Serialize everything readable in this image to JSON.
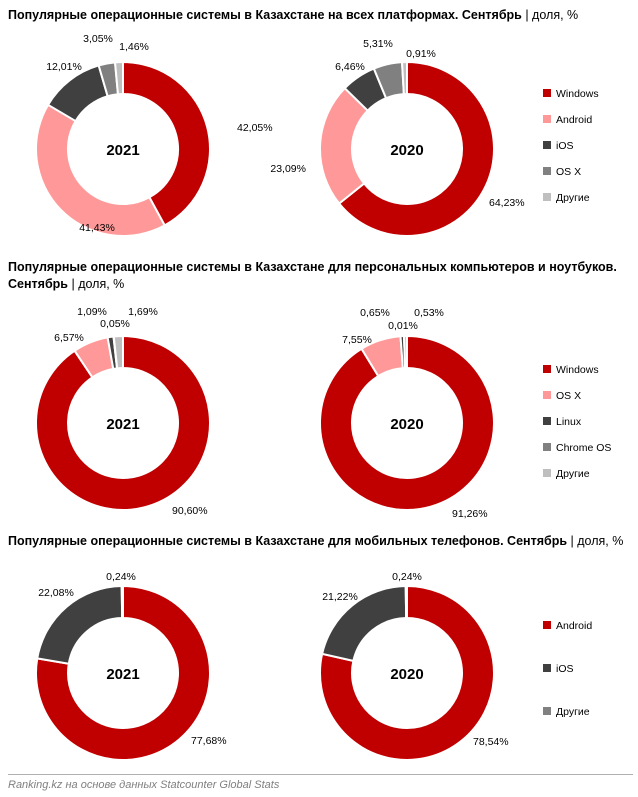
{
  "footer": "Ranking.kz на основе данных Statcounter Global Stats",
  "colors": {
    "Windows": "#c00000",
    "Android": "#ff9999",
    "iOS": "#404040",
    "OS X": "#808080",
    "Другие": "#bfbfbf",
    "Linux": "#404040",
    "Chrome OS": "#808080"
  },
  "sections": [
    {
      "title_bold": "Популярные операционные системы в Казахстане на всех платформах. Сентябрь",
      "title_light": " | доля, %",
      "legend": [
        "Windows",
        "Android",
        "iOS",
        "OS X",
        "Другие"
      ],
      "colors": [
        "#c00000",
        "#ff9999",
        "#404040",
        "#808080",
        "#bfbfbf"
      ]
    },
    {
      "title_bold": "Популярные операционные системы в Казахстане для персональных компьютеров и ноутбуков. Сентябрь",
      "title_light": " | доля, %",
      "legend": [
        "Windows",
        "OS X",
        "Linux",
        "Chrome OS",
        "Другие"
      ],
      "colors": [
        "#c00000",
        "#ff9999",
        "#404040",
        "#808080",
        "#bfbfbf"
      ]
    },
    {
      "title_bold": "Популярные операционные системы в Казахстане для мобильных телефонов. Сентябрь",
      "title_light": " | доля, %",
      "legend": [
        "Android",
        "iOS",
        "Другие"
      ],
      "colors": [
        "#c00000",
        "#404040",
        "#808080"
      ]
    }
  ],
  "chart_data": [
    {
      "type": "pie",
      "center_label": "2021",
      "categories": [
        "Windows",
        "Android",
        "iOS",
        "OS X",
        "Другие"
      ],
      "values": [
        42.05,
        41.43,
        12.01,
        3.05,
        1.46
      ],
      "labels": [
        "42,05%",
        "41,43%",
        "12,01%",
        "3,05%",
        "1,46%"
      ]
    },
    {
      "type": "pie",
      "center_label": "2020",
      "categories": [
        "Windows",
        "Android",
        "iOS",
        "OS X",
        "Другие"
      ],
      "values": [
        64.23,
        23.09,
        6.46,
        5.31,
        0.91
      ],
      "labels": [
        "64,23%",
        "23,09%",
        "6,46%",
        "5,31%",
        "0,91%"
      ]
    },
    {
      "type": "pie",
      "center_label": "2021",
      "categories": [
        "Windows",
        "OS X",
        "Linux",
        "Chrome OS",
        "Другие"
      ],
      "values": [
        90.6,
        6.57,
        1.09,
        0.05,
        1.69
      ],
      "labels": [
        "90,60%",
        "6,57%",
        "1,09%",
        "0,05%",
        "1,69%"
      ]
    },
    {
      "type": "pie",
      "center_label": "2020",
      "categories": [
        "Windows",
        "OS X",
        "Linux",
        "Chrome OS",
        "Другие"
      ],
      "values": [
        91.26,
        7.55,
        0.65,
        0.01,
        0.53
      ],
      "labels": [
        "91,26%",
        "7,55%",
        "0,65%",
        "0,01%",
        "0,53%"
      ]
    },
    {
      "type": "pie",
      "center_label": "2021",
      "categories": [
        "Android",
        "iOS",
        "Другие"
      ],
      "values": [
        77.68,
        22.08,
        0.24
      ],
      "labels": [
        "77,68%",
        "22,08%",
        "0,24%"
      ]
    },
    {
      "type": "pie",
      "center_label": "2020",
      "categories": [
        "Android",
        "iOS",
        "Другие"
      ],
      "values": [
        78.54,
        21.22,
        0.24
      ],
      "labels": [
        "78,54%",
        "21,22%",
        "0,24%"
      ]
    }
  ]
}
